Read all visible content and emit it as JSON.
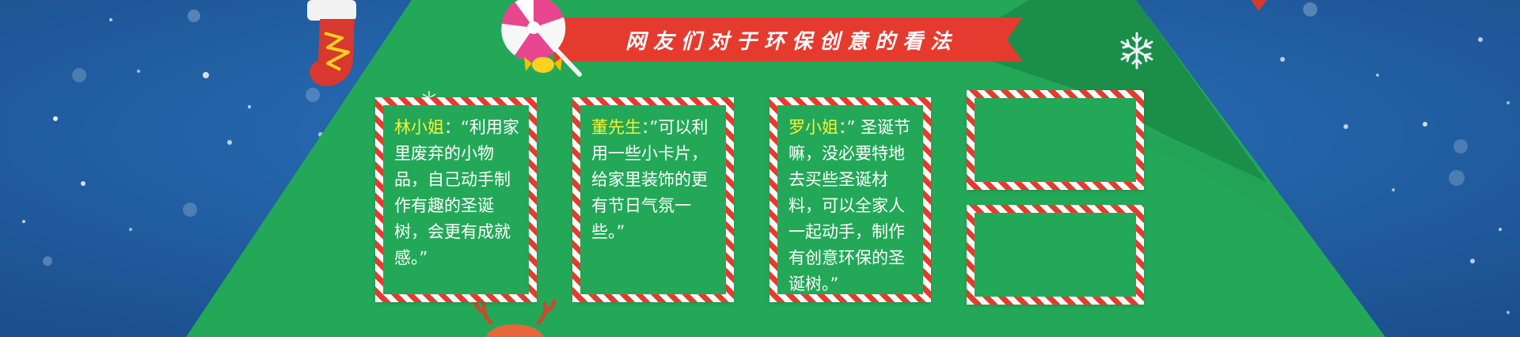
{
  "banner": {
    "title": "网友们对于环保创意的看法"
  },
  "comments": [
    {
      "name": "林小姐",
      "colon": "：",
      "text": "“利用家里废弃的小物品，自己动手制作有趣的圣诞树，会更有成就感。”"
    },
    {
      "name": "董先生",
      "colon": "：",
      "text": "”可以利用一些小卡片，给家里装饰的更有节日气氛一些。”"
    },
    {
      "name": "罗小姐",
      "colon": "：",
      "text": "” 圣诞节嘛，没必要特地去买些圣诞材料，可以全家人一起动手，制作有创意环保的圣诞树。”"
    }
  ],
  "colors": {
    "sky": "#1f5fa3",
    "tree": "#23a858",
    "tree_dark": "#1b8e4a",
    "ribbon": "#e53b2f",
    "name_highlight": "#f6f136",
    "text": "#ffffff"
  },
  "decorations": [
    "christmas-stocking-icon",
    "lollipop-icon",
    "candy-icon",
    "snowflake-icon",
    "reindeer-icon",
    "star-icon"
  ]
}
